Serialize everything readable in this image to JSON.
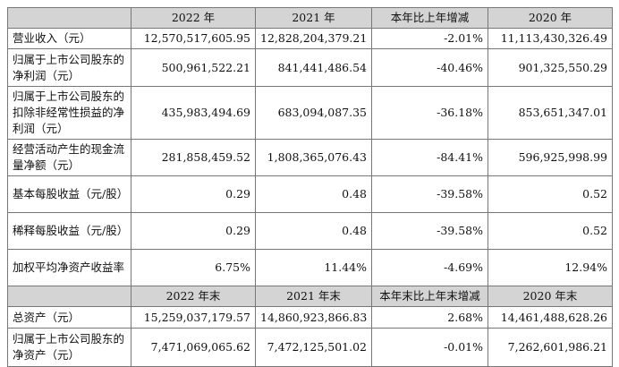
{
  "table": {
    "header1": [
      "",
      "2022 年",
      "2021 年",
      "本年比上年增减",
      "2020 年"
    ],
    "rows1": [
      [
        "营业收入（元）",
        "12,570,517,605.95",
        "12,828,204,379.21",
        "-2.01%",
        "11,113,430,326.49"
      ],
      [
        "归属于上市公司股东的净利润（元）",
        "500,961,522.21",
        "841,441,486.54",
        "-40.46%",
        "901,325,550.29"
      ],
      [
        "归属于上市公司股东的扣除非经常性损益的净利润（元）",
        "435,983,494.69",
        "683,094,087.35",
        "-36.18%",
        "853,651,347.01"
      ],
      [
        "经营活动产生的现金流量净额（元）",
        "281,858,459.52",
        "1,808,365,076.43",
        "-84.41%",
        "596,925,998.99"
      ],
      [
        "基本每股收益（元/股）",
        "0.29",
        "0.48",
        "-39.58%",
        "0.52"
      ],
      [
        "稀释每股收益（元/股）",
        "0.29",
        "0.48",
        "-39.58%",
        "0.52"
      ],
      [
        "加权平均净资产收益率",
        "6.75%",
        "11.44%",
        "-4.69%",
        "12.94%"
      ]
    ],
    "header2": [
      "",
      "2022 年末",
      "2021 年末",
      "本年末比上年末增减",
      "2020 年末"
    ],
    "rows2": [
      [
        "总资产（元）",
        "15,259,037,179.57",
        "14,860,923,866.83",
        "2.68%",
        "14,461,488,628.26"
      ],
      [
        "归属于上市公司股东的净资产（元）",
        "7,471,069,065.62",
        "7,472,125,501.02",
        "-0.01%",
        "7,262,601,986.21"
      ]
    ]
  }
}
